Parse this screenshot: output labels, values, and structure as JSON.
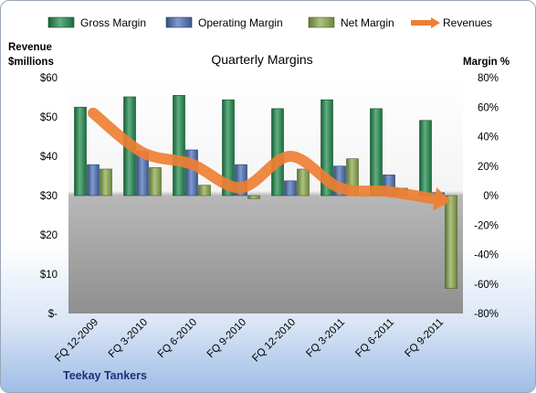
{
  "chart_data": {
    "type": "bar",
    "title": "Quarterly Margins",
    "footer": "Teekay Tankers",
    "categories": [
      "FQ 12-2009",
      "FQ 3-2010",
      "FQ 6-2010",
      "FQ 9-2010",
      "FQ 12-2010",
      "FQ 3-2011",
      "FQ 6-2011",
      "FQ 9-2011"
    ],
    "y_left": {
      "label_line1": "Revenue",
      "label_line2": "$millions",
      "ylim": [
        0,
        60
      ],
      "ticks": [
        0,
        10,
        20,
        30,
        40,
        50,
        60
      ],
      "tick_labels": [
        "$-",
        "$10",
        "$20",
        "$30",
        "$40",
        "$50",
        "$60"
      ]
    },
    "y_right": {
      "label": "Margin %",
      "ylim": [
        -80,
        80
      ],
      "ticks": [
        80,
        60,
        40,
        20,
        0,
        -20,
        -40,
        -60,
        -80
      ],
      "tick_labels": [
        "80%",
        "60%",
        "40%",
        "20%",
        "0%",
        "-20%",
        "-40%",
        "-60%",
        "-80%"
      ]
    },
    "series": [
      {
        "name": "Gross Margin",
        "axis": "right",
        "kind": "bar",
        "color": "#1e8a4c",
        "values": [
          60,
          67,
          68,
          65,
          59,
          65,
          59,
          51
        ]
      },
      {
        "name": "Operating Margin",
        "axis": "right",
        "kind": "bar",
        "color": "#4a6fb5",
        "values": [
          21,
          30,
          31,
          21,
          10,
          20,
          14,
          2
        ]
      },
      {
        "name": "Net Margin",
        "axis": "right",
        "kind": "bar",
        "color": "#88a84a",
        "values": [
          18,
          19,
          7,
          -2,
          18,
          25,
          5,
          -63
        ]
      },
      {
        "name": "Revenues",
        "axis": "left",
        "kind": "line",
        "color": "#ee7f33",
        "values": [
          51,
          41,
          38,
          32,
          40,
          32,
          31,
          29
        ]
      }
    ],
    "grid": false,
    "legend": "top"
  }
}
